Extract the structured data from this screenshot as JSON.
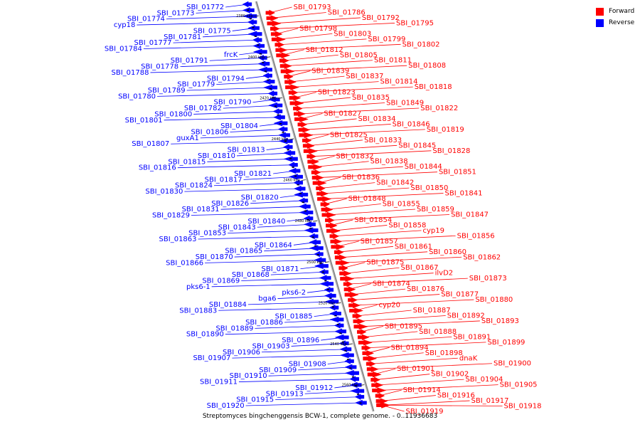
{
  "caption": "Streptomyces bingchenggensis BCW-1, complete genome. - 0..11936683",
  "legend": {
    "forward_label": "Forward",
    "reverse_label": "Reverse",
    "forward_color": "#ff0000",
    "reverse_color": "#0000ff"
  },
  "scale_ticks": [
    "2380 kbp",
    "2400 kbp",
    "2420 kbp",
    "2440 kbp",
    "2460 kbp",
    "2480 kbp",
    "2500 kbp",
    "2520 kbp",
    "2540 kbp",
    "2560 kbp"
  ],
  "forward_genes": [
    "SBI_01793",
    "SBI_01786",
    "SBI_01792",
    "SBI_01795",
    "SBI_01798",
    "SBI_01803",
    "SBI_01799",
    "SBI_01802",
    "SBI_01812",
    "SBI_01805",
    "SBI_01811",
    "SBI_01808",
    "SBI_01839",
    "SBI_01837",
    "SBI_01814",
    "SBI_01818",
    "SBI_01823",
    "SBI_01835",
    "SBI_01849",
    "SBI_01822",
    "SBI_01827",
    "SBI_01834",
    "SBI_01846",
    "SBI_01819",
    "SBI_01825",
    "SBI_01833",
    "SBI_01845",
    "SBI_01828",
    "SBI_01832",
    "SBI_01838",
    "SBI_01844",
    "SBI_01851",
    "SBI_01836",
    "SBI_01842",
    "SBI_01850",
    "SBI_01841",
    "SBI_01848",
    "SBI_01855",
    "SBI_01859",
    "SBI_01847",
    "SBI_01854",
    "SBI_01858",
    "cyp19",
    "SBI_01856",
    "SBI_01857",
    "SBI_01861",
    "SBI_01860",
    "SBI_01862",
    "SBI_01875",
    "SBI_01867",
    "ilvD2",
    "SBI_01873",
    "SBI_01874",
    "SBI_01876",
    "SBI_01877",
    "SBI_01880",
    "cyp20",
    "SBI_01887",
    "SBI_01892",
    "SBI_01893",
    "SBI_01895",
    "SBI_01888",
    "SBI_01891",
    "SBI_01899",
    "SBI_01894",
    "SBI_01898",
    "dnaK",
    "SBI_01900",
    "SBI_01901",
    "SBI_01902",
    "SBI_01904",
    "SBI_01905",
    "SBI_01914",
    "SBI_01916",
    "SBI_01917",
    "SBI_01918",
    "SBI_01919"
  ],
  "reverse_genes": [
    "SBI_01772",
    "SBI_01773",
    "SBI_01774",
    "cyp18",
    "SBI_01775",
    "SBI_01781",
    "SBI_01777",
    "SBI_01784",
    "frcK",
    "SBI_01791",
    "SBI_01778",
    "SBI_01788",
    "SBI_01794",
    "SBI_01779",
    "SBI_01789",
    "SBI_01780",
    "SBI_01790",
    "SBI_01782",
    "SBI_01800",
    "SBI_01801",
    "SBI_01804",
    "SBI_01806",
    "guxA1",
    "SBI_01807",
    "SBI_01813",
    "SBI_01810",
    "SBI_01815",
    "SBI_01816",
    "SBI_01821",
    "SBI_01817",
    "SBI_01824",
    "SBI_01830",
    "SBI_01820",
    "SBI_01826",
    "SBI_01831",
    "SBI_01829",
    "SBI_01840",
    "SBI_01843",
    "SBI_01853",
    "SBI_01863",
    "SBI_01864",
    "SBI_01865",
    "SBI_01870",
    "SBI_01866",
    "SBI_01871",
    "SBI_01868",
    "SBI_01869",
    "pks6-1",
    "pks6-2",
    "bga6",
    "SBI_01884",
    "SBI_01883",
    "SBI_01885",
    "SBI_01886",
    "SBI_01889",
    "SBI_01890",
    "SBI_01896",
    "SBI_01903",
    "SBI_01906",
    "SBI_01907",
    "SBI_01908",
    "SBI_01909",
    "SBI_01910",
    "SBI_01911",
    "SBI_01912",
    "SBI_01913",
    "SBI_01915",
    "SBI_01920"
  ]
}
